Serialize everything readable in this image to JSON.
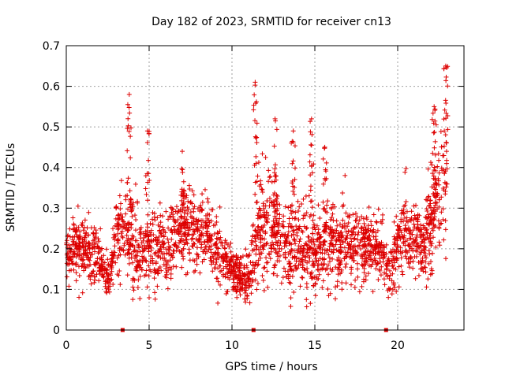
{
  "chart_data": {
    "type": "scatter",
    "title": "Day 182 of 2023, SRMTID for receiver cn13",
    "xlabel": "GPS time / hours",
    "ylabel": "SRMTID / TECUs",
    "xlim": [
      0,
      24
    ],
    "ylim": [
      0,
      0.7
    ],
    "xticks": [
      0,
      5,
      10,
      15,
      20
    ],
    "xtick_labels": [
      "0",
      "5",
      "10",
      "15",
      "20"
    ],
    "yticks": [
      0,
      0.1,
      0.2,
      0.3,
      0.4,
      0.5,
      0.6,
      0.7
    ],
    "ytick_labels": [
      "0",
      "0.1",
      "0.2",
      "0.3",
      "0.4",
      "0.5",
      "0.6",
      "0.7"
    ],
    "grid": true,
    "marker": "+",
    "color": "#dd0000",
    "point_count_estimate": 2500,
    "envelope": {
      "hours": [
        0,
        0.5,
        1,
        1.5,
        2,
        2.3,
        2.6,
        3,
        3.4,
        3.8,
        4.2,
        4.6,
        5,
        5.5,
        6,
        6.5,
        7,
        7.5,
        8,
        8.5,
        9,
        9.5,
        10,
        10.5,
        11,
        11.5,
        12,
        12.5,
        13,
        13.5,
        14,
        14.5,
        15,
        15.5,
        16,
        16.5,
        17,
        17.5,
        18,
        18.5,
        19,
        19.5,
        20,
        20.5,
        21,
        21.5,
        22,
        22.5,
        23
      ],
      "median": [
        0.19,
        0.2,
        0.2,
        0.19,
        0.18,
        0.14,
        0.12,
        0.25,
        0.24,
        0.23,
        0.2,
        0.2,
        0.2,
        0.19,
        0.2,
        0.22,
        0.25,
        0.24,
        0.23,
        0.22,
        0.2,
        0.17,
        0.15,
        0.13,
        0.12,
        0.24,
        0.27,
        0.24,
        0.22,
        0.2,
        0.19,
        0.21,
        0.19,
        0.2,
        0.22,
        0.2,
        0.22,
        0.21,
        0.2,
        0.21,
        0.2,
        0.12,
        0.22,
        0.25,
        0.22,
        0.2,
        0.28,
        0.33,
        0.35
      ],
      "spread": [
        0.06,
        0.06,
        0.07,
        0.07,
        0.06,
        0.04,
        0.04,
        0.1,
        0.1,
        0.12,
        0.09,
        0.08,
        0.09,
        0.08,
        0.08,
        0.09,
        0.1,
        0.09,
        0.08,
        0.08,
        0.07,
        0.06,
        0.05,
        0.05,
        0.05,
        0.12,
        0.13,
        0.1,
        0.09,
        0.09,
        0.09,
        0.1,
        0.09,
        0.08,
        0.09,
        0.08,
        0.08,
        0.08,
        0.07,
        0.08,
        0.08,
        0.05,
        0.08,
        0.09,
        0.08,
        0.07,
        0.12,
        0.14,
        0.15
      ]
    },
    "peaks": [
      {
        "hour": 3.8,
        "value": 0.58
      },
      {
        "hour": 4.9,
        "value": 0.49
      },
      {
        "hour": 7.0,
        "value": 0.44
      },
      {
        "hour": 11.4,
        "value": 0.61
      },
      {
        "hour": 12.6,
        "value": 0.52
      },
      {
        "hour": 13.7,
        "value": 0.49
      },
      {
        "hour": 14.8,
        "value": 0.52
      },
      {
        "hour": 15.6,
        "value": 0.45
      },
      {
        "hour": 22.2,
        "value": 0.55
      },
      {
        "hour": 22.9,
        "value": 0.65
      }
    ],
    "markers_on_x_axis": [
      3.4,
      11.3,
      19.3
    ]
  }
}
